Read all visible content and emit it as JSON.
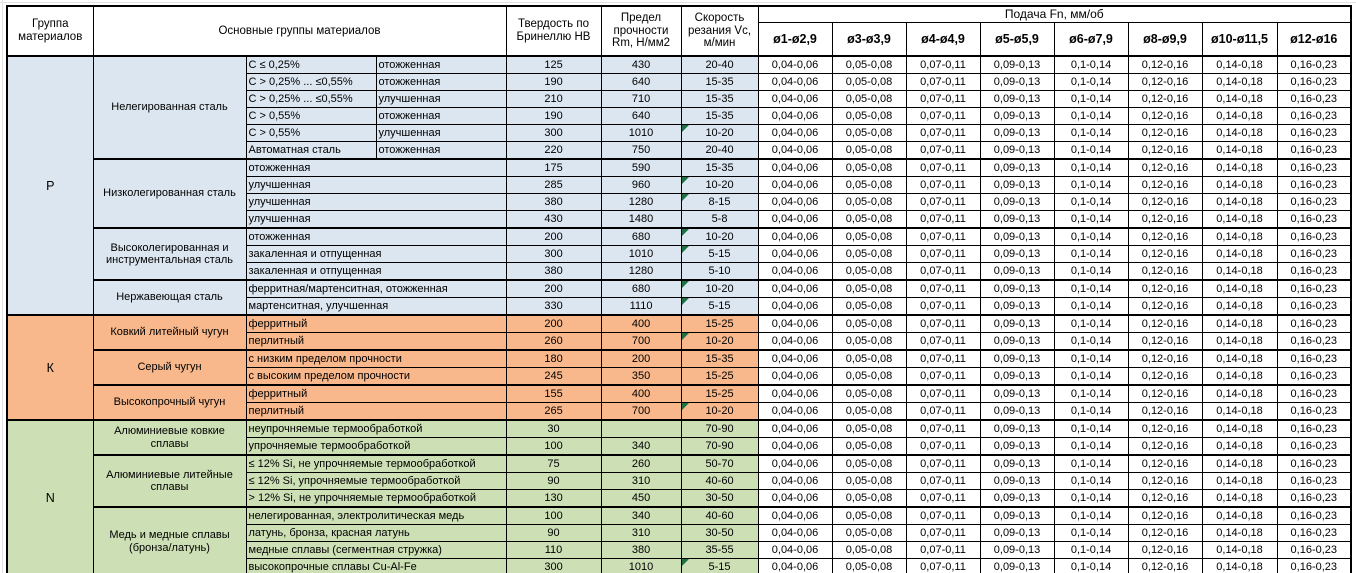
{
  "header": {
    "material_group": "Группа материалов",
    "main_groups": "Основные группы материалов",
    "hardness": "Твердость по Бринеллю HB",
    "strength": "Предел прочности Rm, Н/мм2",
    "speed": "Скорость резания Vc, м/мин"
  },
  "feed": {
    "title": "Подача Fn, мм/об",
    "columns": [
      "ø1-ø2,9",
      "ø3-ø3,9",
      "ø4-ø4,9",
      "ø5-ø5,9",
      "ø6-ø7,9",
      "ø8-ø9,9",
      "ø10-ø11,5",
      "ø12-ø16"
    ],
    "values_per_row": [
      "0,04-0,06",
      "0,05-0,08",
      "0,07-0,11",
      "0,09-0,13",
      "0,1-0,14",
      "0,12-0,16",
      "0,14-0,18",
      "0,16-0,23"
    ]
  },
  "icons": {
    "flag_triangle_color": "#1E7145"
  },
  "colors": {
    "p_group": "#DCE6F1",
    "k_group": "#F8B88C",
    "n_group": "#CDDFB5",
    "border": "#000000"
  },
  "groups": [
    {
      "code": "P",
      "color": "#DCE6F1",
      "subgroups": [
        {
          "name": "Нелегированная сталь",
          "rows": [
            {
              "c1": "C ≤ 0,25%",
              "c2": "отожженная",
              "hb": "125",
              "rm": "430",
              "vc": "20-40",
              "tri": false
            },
            {
              "c1": "C > 0,25% ... ≤0,55%",
              "c2": "отожженная",
              "hb": "190",
              "rm": "640",
              "vc": "15-35",
              "tri": false
            },
            {
              "c1": "C > 0,25% ... ≤0,55%",
              "c2": "улучшенная",
              "hb": "210",
              "rm": "710",
              "vc": "15-35",
              "tri": false
            },
            {
              "c1": "C > 0,55%",
              "c2": "отожженная",
              "hb": "190",
              "rm": "640",
              "vc": "15-35",
              "tri": false
            },
            {
              "c1": "C > 0,55%",
              "c2": "улучшенная",
              "hb": "300",
              "rm": "1010",
              "vc": "10-20",
              "tri": true
            },
            {
              "c1": "Автоматная сталь",
              "c2": "отожженная",
              "hb": "220",
              "rm": "750",
              "vc": "20-40",
              "tri": false
            }
          ]
        },
        {
          "name": "Низколегированная сталь",
          "rows": [
            {
              "desc": "отожженная",
              "hb": "175",
              "rm": "590",
              "vc": "15-35",
              "tri": false
            },
            {
              "desc": "улучшенная",
              "hb": "285",
              "rm": "960",
              "vc": "10-20",
              "tri": true
            },
            {
              "desc": "улучшенная",
              "hb": "380",
              "rm": "1280",
              "vc": "8-15",
              "tri": true
            },
            {
              "desc": "улучшенная",
              "hb": "430",
              "rm": "1480",
              "vc": "5-8",
              "tri": false
            }
          ]
        },
        {
          "name": "Высоколегированная и инструментальная сталь",
          "rows": [
            {
              "desc": "отожженная",
              "hb": "200",
              "rm": "680",
              "vc": "10-20",
              "tri": true
            },
            {
              "desc": "закаленная и отпущенная",
              "hb": "300",
              "rm": "1010",
              "vc": "5-15",
              "tri": true
            },
            {
              "desc": "закаленная и отпущенная",
              "hb": "380",
              "rm": "1280",
              "vc": "5-10",
              "tri": false
            }
          ]
        },
        {
          "name": "Нержавеющая сталь",
          "rows": [
            {
              "desc": "ферритная/мартенситная, отожженная",
              "hb": "200",
              "rm": "680",
              "vc": "10-20",
              "tri": true
            },
            {
              "desc": "мартенситная, улучшенная",
              "hb": "330",
              "rm": "1110",
              "vc": "5-15",
              "tri": true
            }
          ]
        }
      ]
    },
    {
      "code": "К",
      "color": "#F8B88C",
      "subgroups": [
        {
          "name": "Ковкий литейный чугун",
          "rows": [
            {
              "desc": "ферритный",
              "hb": "200",
              "rm": "400",
              "vc": "15-25",
              "tri": false
            },
            {
              "desc": "перлитный",
              "hb": "260",
              "rm": "700",
              "vc": "10-20",
              "tri": true
            }
          ]
        },
        {
          "name": "Серый чугун",
          "rows": [
            {
              "desc": "с низким пределом прочности",
              "hb": "180",
              "rm": "200",
              "vc": "15-35",
              "tri": false
            },
            {
              "desc": "с высоким пределом прочности",
              "hb": "245",
              "rm": "350",
              "vc": "15-25",
              "tri": false
            }
          ]
        },
        {
          "name": "Высокопрочный чугун",
          "rows": [
            {
              "desc": "ферритный",
              "hb": "155",
              "rm": "400",
              "vc": "15-25",
              "tri": false
            },
            {
              "desc": "перлитный",
              "hb": "265",
              "rm": "700",
              "vc": "10-20",
              "tri": true
            }
          ]
        }
      ]
    },
    {
      "code": "N",
      "color": "#CDDFB5",
      "subgroups": [
        {
          "name": "Алюминиевые ковкие сплавы",
          "rows": [
            {
              "desc": "неупрочняемые термообработкой",
              "hb": "30",
              "rm": "",
              "vc": "70-90",
              "tri": false
            },
            {
              "desc": "упрочняемые термообработкой",
              "hb": "100",
              "rm": "340",
              "vc": "70-90",
              "tri": false
            }
          ]
        },
        {
          "name": "Алюминиевые литейные сплавы",
          "rows": [
            {
              "desc": "≤ 12% Si, не упрочняемые термообработкой",
              "hb": "75",
              "rm": "260",
              "vc": "50-70",
              "tri": false
            },
            {
              "desc": "≤ 12% Si, упрочняемые термообработкой",
              "hb": "90",
              "rm": "310",
              "vc": "40-60",
              "tri": false
            },
            {
              "desc": "> 12% Si, не упрочняемые термообработкой",
              "hb": "130",
              "rm": "450",
              "vc": "30-50",
              "tri": false
            }
          ]
        },
        {
          "name": "Медь и медные сплавы (бронза/латунь)",
          "rows": [
            {
              "desc": "нелегированная, электролитическая медь",
              "hb": "100",
              "rm": "340",
              "vc": "40-60",
              "tri": false
            },
            {
              "desc": "латунь, бронза, красная латунь",
              "hb": "90",
              "rm": "310",
              "vc": "30-50",
              "tri": false
            },
            {
              "desc": "медные сплавы (сегментная стружка)",
              "hb": "110",
              "rm": "380",
              "vc": "35-55",
              "tri": false
            },
            {
              "desc": "высокопрочные сплавы Cu-Al-Fe",
              "hb": "300",
              "rm": "1010",
              "vc": "5-15",
              "tri": true
            }
          ]
        }
      ]
    }
  ]
}
